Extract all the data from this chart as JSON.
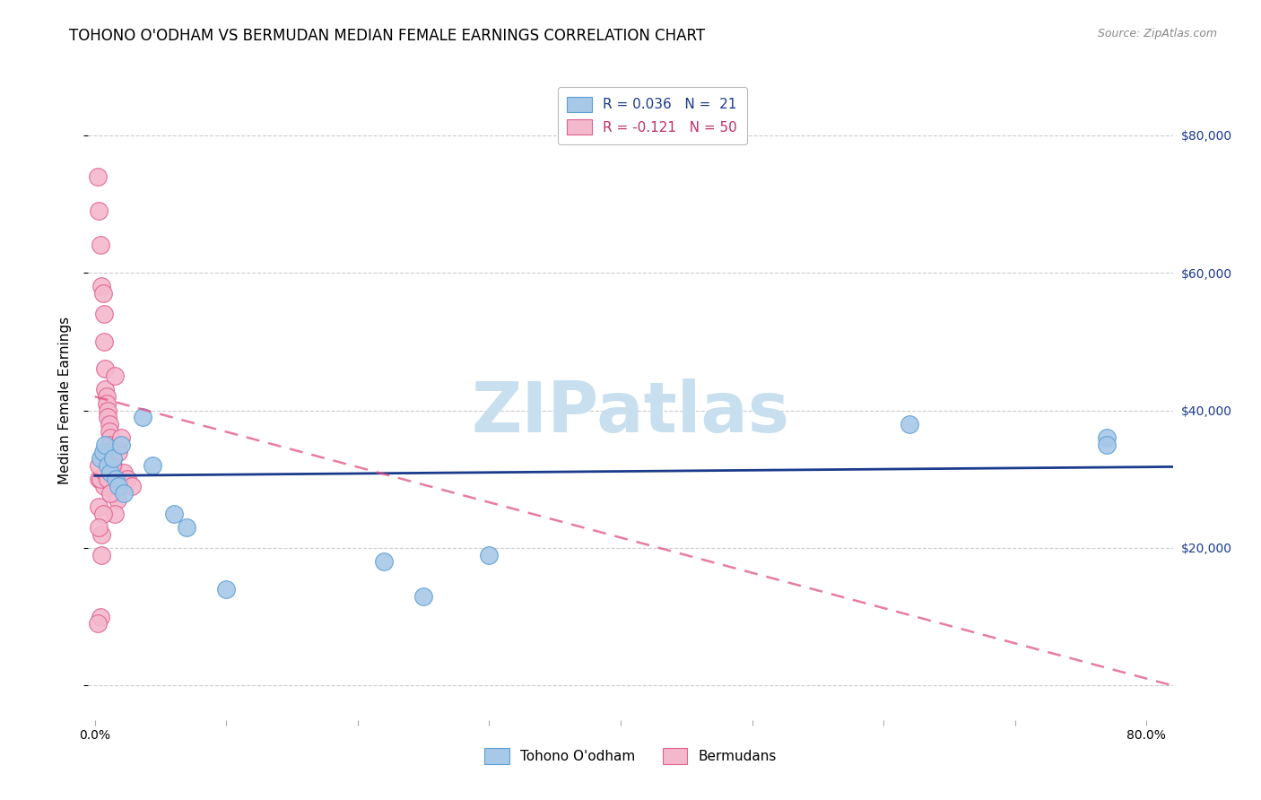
{
  "title": "TOHONO O'ODHAM VS BERMUDAN MEDIAN FEMALE EARNINGS CORRELATION CHART",
  "source": "Source: ZipAtlas.com",
  "ylabel": "Median Female Earnings",
  "xlim": [
    -0.005,
    0.82
  ],
  "ylim": [
    -5000,
    88000
  ],
  "blue_color": "#a8c8e8",
  "pink_color": "#f4b8cc",
  "blue_edge": "#5a9fd4",
  "pink_edge": "#e06090",
  "trendline_blue": "#1a3a8c",
  "trendline_pink": "#e05080",
  "watermark_color": "#c8dff0",
  "background_color": "#ffffff",
  "grid_color": "#cccccc",
  "tohono_x": [
    0.004,
    0.006,
    0.008,
    0.01,
    0.012,
    0.014,
    0.016,
    0.018,
    0.02,
    0.022,
    0.06,
    0.07,
    0.1,
    0.22,
    0.25,
    0.3,
    0.62,
    0.77,
    0.77,
    0.036,
    0.044
  ],
  "tohono_y": [
    33000,
    34000,
    35000,
    32000,
    31000,
    33000,
    30000,
    29000,
    35000,
    28000,
    25000,
    23000,
    14000,
    18000,
    13000,
    19000,
    38000,
    36000,
    35000,
    39000,
    32000
  ],
  "bermudan_x": [
    0.002,
    0.003,
    0.004,
    0.005,
    0.006,
    0.007,
    0.007,
    0.008,
    0.008,
    0.009,
    0.009,
    0.01,
    0.01,
    0.011,
    0.011,
    0.012,
    0.012,
    0.013,
    0.013,
    0.014,
    0.014,
    0.015,
    0.015,
    0.016,
    0.016,
    0.017,
    0.017,
    0.018,
    0.02,
    0.022,
    0.025,
    0.028,
    0.003,
    0.005,
    0.007,
    0.009,
    0.011,
    0.013,
    0.015,
    0.003,
    0.004,
    0.005,
    0.006,
    0.008,
    0.01,
    0.012,
    0.003,
    0.004,
    0.002,
    0.003
  ],
  "bermudan_y": [
    74000,
    69000,
    64000,
    58000,
    57000,
    54000,
    50000,
    46000,
    43000,
    42000,
    41000,
    40000,
    39000,
    38000,
    37000,
    36000,
    35000,
    34000,
    33000,
    32000,
    31000,
    30000,
    45000,
    29000,
    28000,
    27000,
    35000,
    34000,
    36000,
    31000,
    30000,
    29000,
    30000,
    22000,
    29000,
    30000,
    31000,
    32000,
    25000,
    26000,
    30000,
    19000,
    25000,
    31000,
    30000,
    28000,
    23000,
    10000,
    9000,
    32000
  ],
  "title_fontsize": 12,
  "axis_label_fontsize": 11,
  "tick_fontsize": 10
}
